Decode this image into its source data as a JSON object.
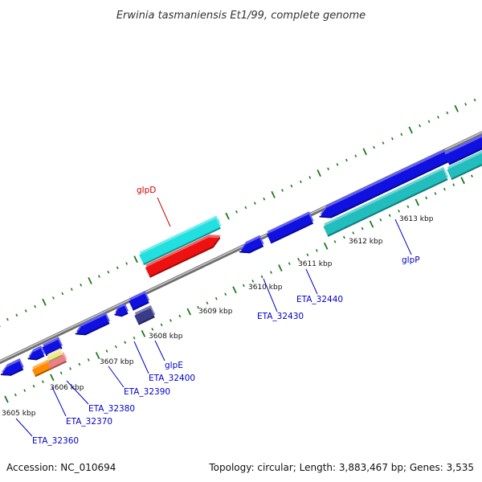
{
  "title": "Erwinia tasmaniensis Et1/99, complete genome",
  "accession": "Accession: NC_010694",
  "topology": "Topology: circular; Length: 3,883,467 bp; Genes: 3,535",
  "scale_labels": [
    "3605 kbp",
    "3606 kbp",
    "3607 kbp",
    "3608 kbp",
    "3609 kbp",
    "3610 kbp",
    "3611 kbp",
    "3612 kbp",
    "3613 kbp"
  ],
  "genes": [
    {
      "name": "ETA_32360",
      "color": "#0000cc"
    },
    {
      "name": "ETA_32370",
      "color": "#0000cc"
    },
    {
      "name": "ETA_32380",
      "color": "#0000cc"
    },
    {
      "name": "ETA_32390",
      "color": "#0000cc"
    },
    {
      "name": "ETA_32400",
      "color": "#0000cc"
    },
    {
      "name": "glpE",
      "color": "#0000cc"
    },
    {
      "name": "ETA_32430",
      "color": "#0000cc"
    },
    {
      "name": "ETA_32440",
      "color": "#0000cc"
    },
    {
      "name": "glpP",
      "color": "#0000cc"
    },
    {
      "name": "glpD",
      "color": "#cc0000"
    }
  ],
  "colors": {
    "backbone": "#8a8a8a",
    "tick": "#1a7a1a",
    "cds_blue": "#1010e0",
    "cds_cyan": "#22e0e0",
    "cds_red": "#ee1111",
    "cds_teal": "#22bdbd",
    "cds_orange": "#ff8c00",
    "cds_pink": "#f08080",
    "cds_yellow": "#f0e68c",
    "cds_slate": "#3a3a8a"
  }
}
